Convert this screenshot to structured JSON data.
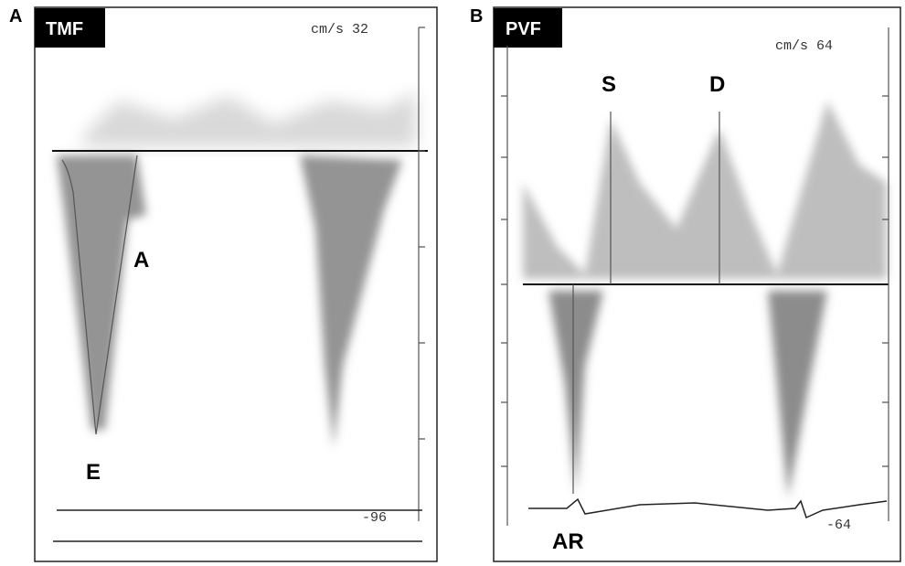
{
  "panels": [
    {
      "letter": "A",
      "title": "TMF",
      "scale_label": "cm/s 32",
      "bottom_label": "-96",
      "wave_labels": [
        "A",
        "E"
      ]
    },
    {
      "letter": "B",
      "title": "PVF",
      "scale_label": "cm/s 64",
      "bottom_label": "-64",
      "wave_labels": [
        "S",
        "D",
        "AR"
      ]
    }
  ]
}
